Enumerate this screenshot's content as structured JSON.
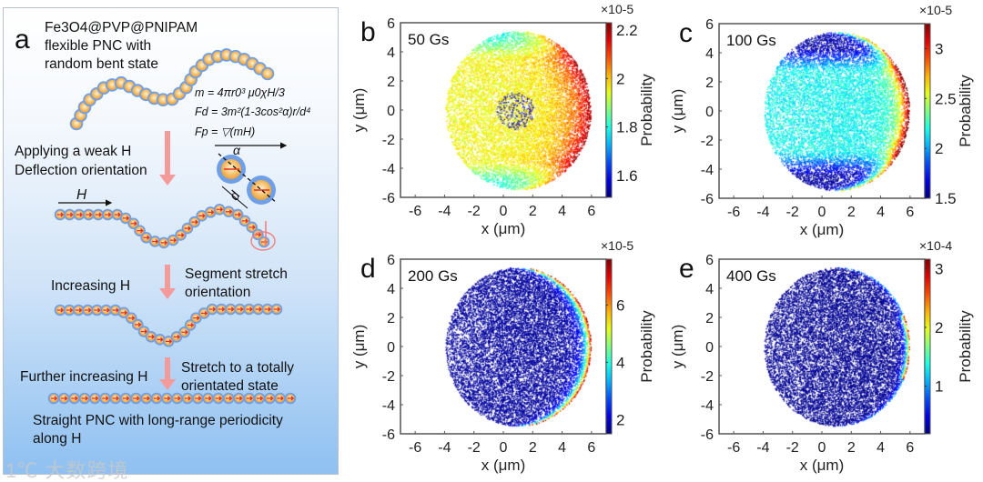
{
  "panel_a": {
    "letter": "a",
    "title_lines": [
      "Fe3O4@PVP@PNIPAM",
      "flexible PNC with",
      "random bent state"
    ],
    "equations": [
      "m = 4πr0³ μ0χH/3",
      "Fd = 3m²(1-3cos²α)r/d⁴",
      "Fp = ▽(mH)"
    ],
    "step1": [
      "Applying a weak H",
      "Deflection orientation"
    ],
    "field_label": "H",
    "alpha_label": "α",
    "d_label": "d",
    "step2_left": "Increasing H",
    "step2_right": [
      "Segment stretch",
      "orientation"
    ],
    "step3_left": "Further increasing H",
    "step3_right": [
      "Stretch to a totally",
      "orientated state"
    ],
    "final": [
      "Straight PNC with long-range periodicity",
      "along H"
    ],
    "watermark": "1℃ 大数跨境"
  },
  "chart_data": [
    {
      "type": "scatter",
      "letter": "b",
      "field": "50 Gs",
      "xlabel": "x (μm)",
      "ylabel": "y (μm)",
      "xlim": [
        -7,
        7
      ],
      "ylim": [
        -6,
        6
      ],
      "xticks": [
        -6,
        -4,
        -2,
        0,
        2,
        4,
        6
      ],
      "yticks": [
        -6,
        -4,
        -2,
        0,
        2,
        4,
        6
      ],
      "colorbar": {
        "label": "Probability",
        "exponent": "×10-5",
        "range": [
          1.51,
          2.23
        ],
        "ticks": [
          1.6,
          1.8,
          2,
          2.2
        ]
      },
      "colormap": "jet"
    },
    {
      "type": "scatter",
      "letter": "c",
      "field": "100 Gs",
      "xlabel": "x (μm)",
      "ylabel": "y (μm)",
      "xlim": [
        -7,
        7
      ],
      "ylim": [
        -6,
        6
      ],
      "xticks": [
        -6,
        -4,
        -2,
        0,
        2,
        4,
        6
      ],
      "yticks": [
        -6,
        -4,
        -2,
        0,
        2,
        4,
        6
      ],
      "colorbar": {
        "label": "Probability",
        "exponent": "×10-5",
        "range": [
          1.5,
          3.25
        ],
        "ticks": [
          1.5,
          2,
          2.5,
          3
        ]
      },
      "colormap": "jet"
    },
    {
      "type": "scatter",
      "letter": "d",
      "field": "200 Gs",
      "xlabel": "x (μm)",
      "ylabel": "y (μm)",
      "xlim": [
        -7,
        7
      ],
      "ylim": [
        -6,
        6
      ],
      "xticks": [
        -6,
        -4,
        -2,
        0,
        2,
        4,
        6
      ],
      "yticks": [
        -6,
        -4,
        -2,
        0,
        2,
        4,
        6
      ],
      "colorbar": {
        "label": "Probability",
        "exponent": "×10-5",
        "range": [
          1.5,
          7.6
        ],
        "ticks": [
          2,
          4,
          6
        ]
      },
      "colormap": "jet"
    },
    {
      "type": "scatter",
      "letter": "e",
      "field": "400 Gs",
      "xlabel": "x (μm)",
      "ylabel": "y (μm)",
      "xlim": [
        -7,
        7
      ],
      "ylim": [
        -6,
        6
      ],
      "xticks": [
        -6,
        -4,
        -2,
        0,
        2,
        4,
        6
      ],
      "yticks": [
        -6,
        -4,
        -2,
        0,
        2,
        4,
        6
      ],
      "colorbar": {
        "label": "Probability",
        "exponent": "×10-4",
        "range": [
          0.19,
          3.16
        ],
        "ticks": [
          1,
          2,
          3
        ]
      },
      "colormap": "jet"
    }
  ]
}
